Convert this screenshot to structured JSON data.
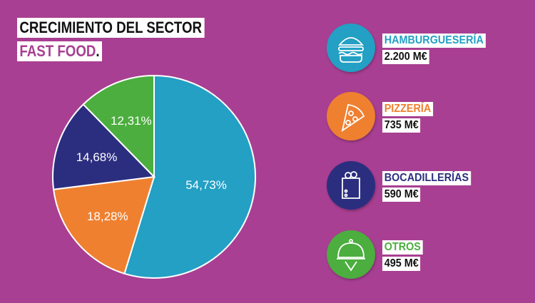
{
  "title": {
    "line1": "CRECIMIENTO DEL SECTOR",
    "line2": "FAST FOOD",
    "line2_dot": "."
  },
  "colors": {
    "background": "#a83f92",
    "hamburgueseria": "#23a0c4",
    "pizzeria": "#ef8030",
    "bocadillerias": "#2b2e7f",
    "otros": "#4bae3e"
  },
  "chart_data": {
    "type": "pie",
    "categories": [
      "HAMBURGUESERÍA",
      "PIZZERÍA",
      "BOCADILLERÍAS",
      "OTROS"
    ],
    "values": [
      54.73,
      18.28,
      14.68,
      12.31
    ],
    "labels": [
      "54,73%",
      "18,28%",
      "14,68%",
      "12,31%"
    ],
    "colors": [
      "#23a0c4",
      "#ef8030",
      "#2b2e7f",
      "#4bae3e"
    ],
    "start": "top",
    "direction": "clockwise"
  },
  "legend": [
    {
      "name": "HAMBURGUESERÍA",
      "value": "2.200 M€",
      "icon": "burger-icon",
      "color": "#23a0c4"
    },
    {
      "name": "PIZZERÍA",
      "value": "735 M€",
      "icon": "pizza-slice-icon",
      "color": "#ef8030"
    },
    {
      "name": "BOCADILLERÍAS",
      "value": "590 M€",
      "icon": "sandwich-icon",
      "color": "#2b2e7f"
    },
    {
      "name": "OTROS",
      "value": "495 M€",
      "icon": "cloche-icon",
      "color": "#4bae3e"
    }
  ]
}
